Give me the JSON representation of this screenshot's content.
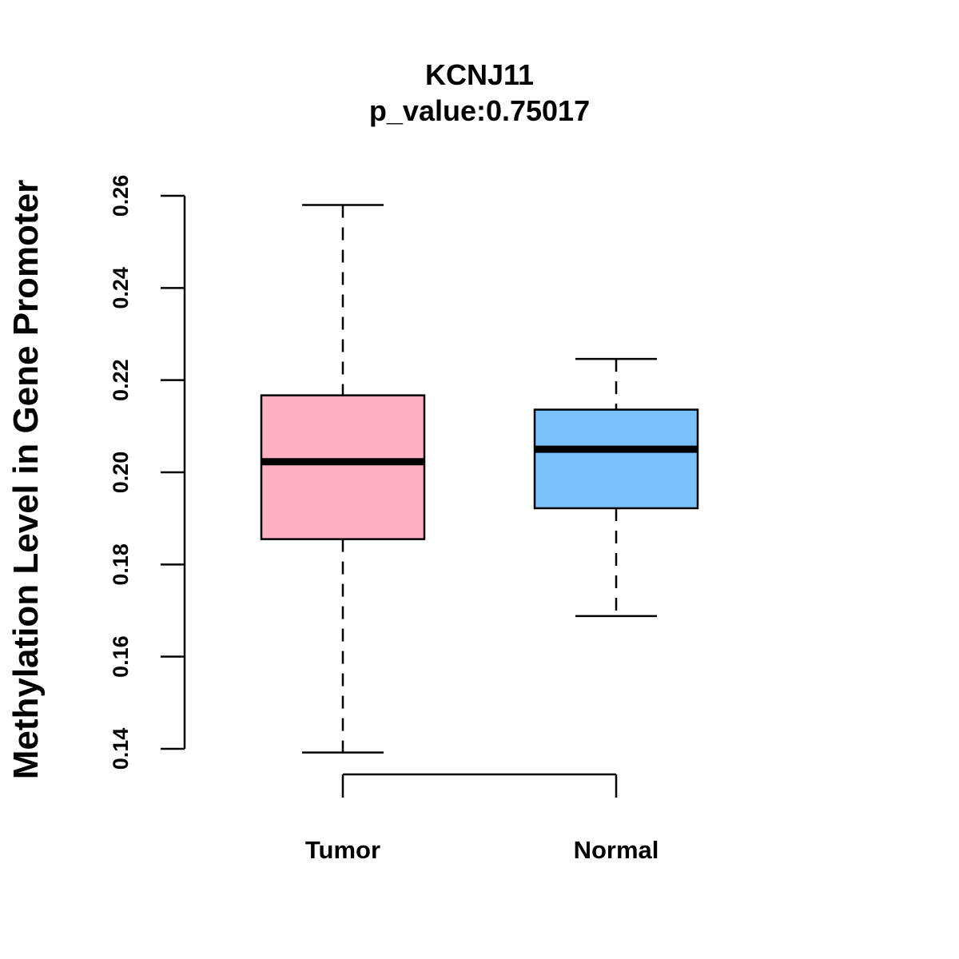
{
  "chart_data": {
    "type": "box",
    "title": "KCNJ11",
    "subtitle": "p_value:0.75017",
    "ylabel": "Methylation Level in Gene Promoter",
    "xlabel": "",
    "ylim": [
      0.14,
      0.26
    ],
    "yticks": [
      0.14,
      0.16,
      0.18,
      0.2,
      0.22,
      0.24,
      0.26
    ],
    "ytick_labels": [
      "0.14",
      "0.16",
      "0.18",
      "0.20",
      "0.22",
      "0.24",
      "0.26"
    ],
    "grid": false,
    "categories": [
      "Tumor",
      "Normal"
    ],
    "series": [
      {
        "name": "Tumor",
        "color": "#FFB0C3",
        "whisker_low": 0.1392,
        "q1": 0.1855,
        "median": 0.2023,
        "q3": 0.2167,
        "whisker_high": 0.258
      },
      {
        "name": "Normal",
        "color": "#79C1F8",
        "whisker_low": 0.1688,
        "q1": 0.1922,
        "median": 0.205,
        "q3": 0.2136,
        "whisker_high": 0.2246
      }
    ],
    "comparison_bracket": [
      "Tumor",
      "Normal"
    ]
  }
}
